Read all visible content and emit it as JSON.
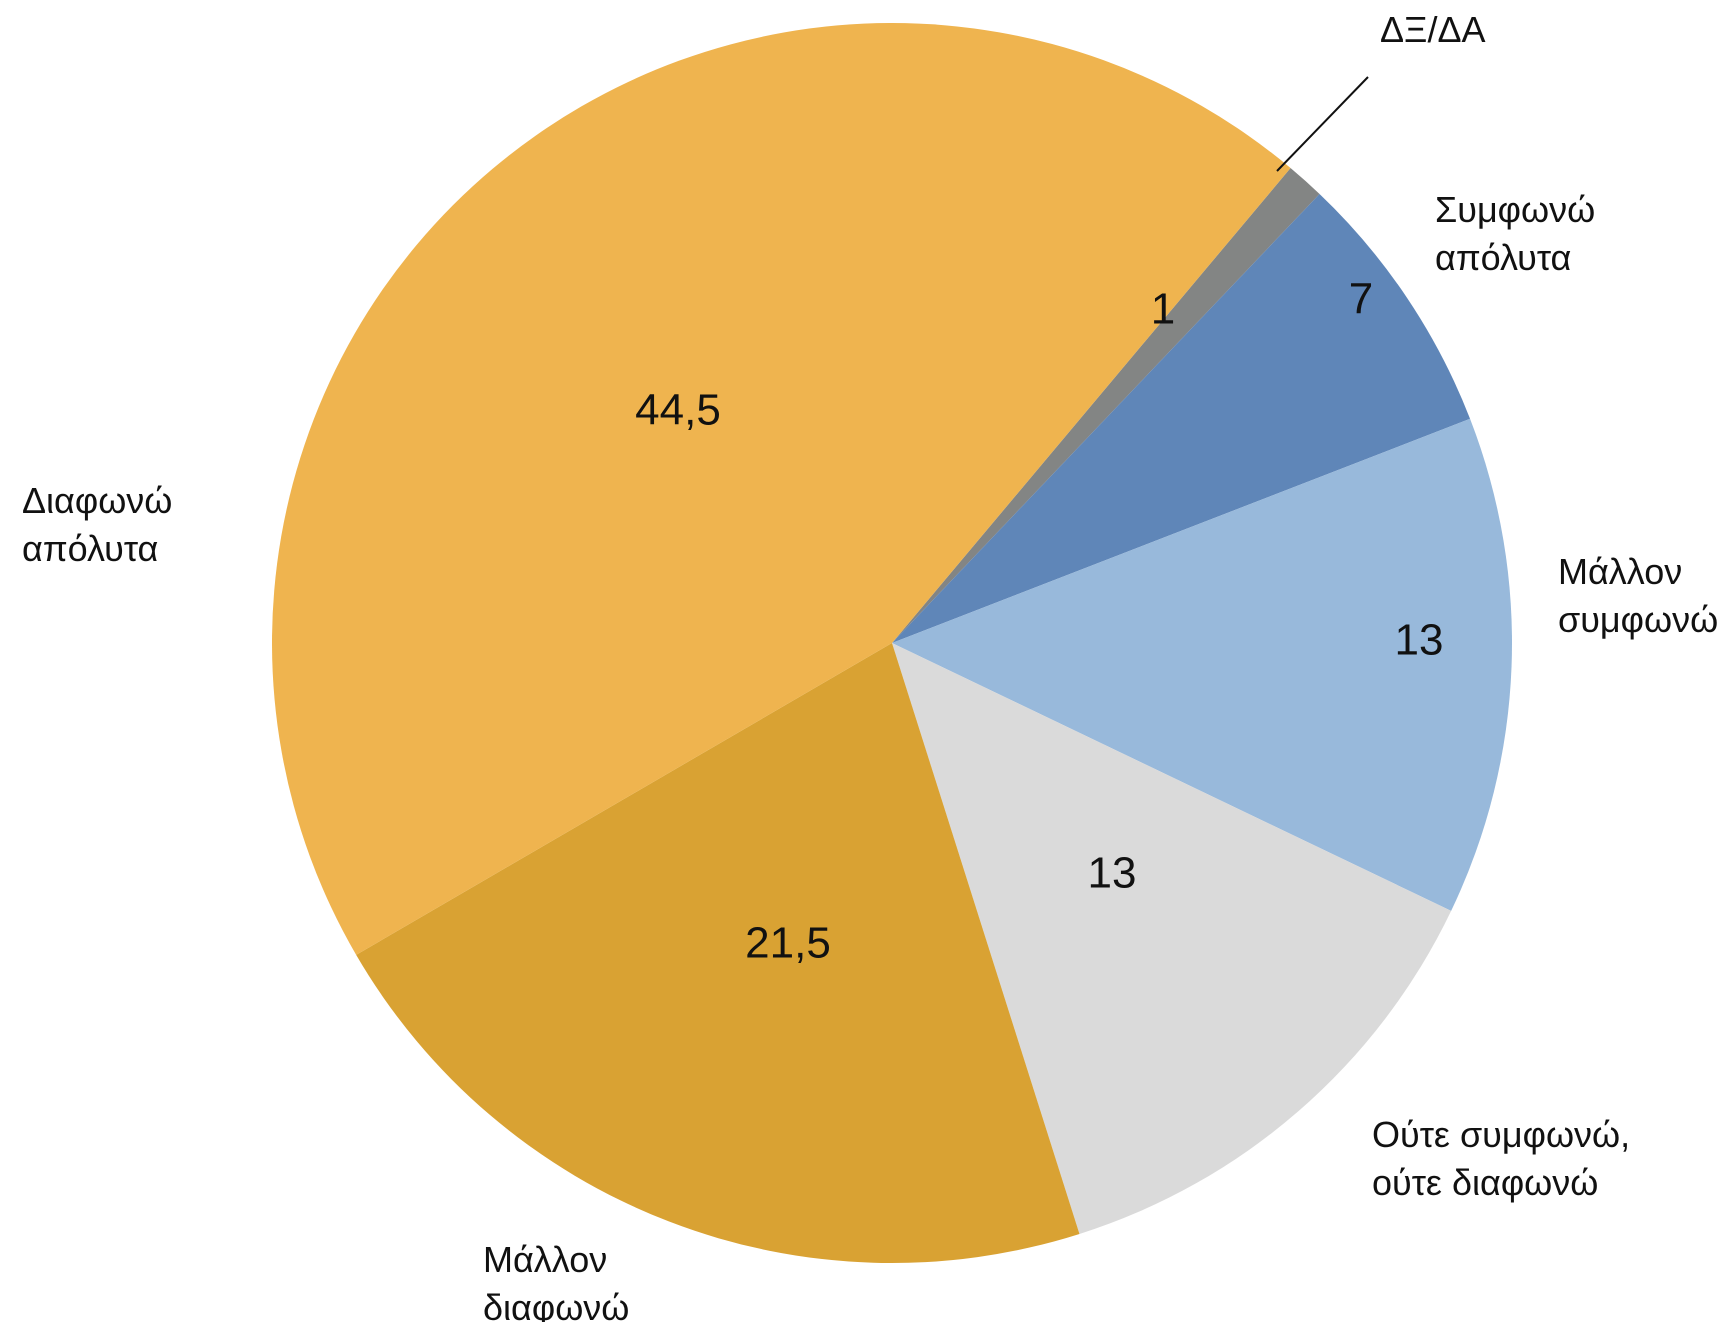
{
  "chart_data": {
    "type": "pie",
    "title": "",
    "start_angle_deg": 40,
    "direction": "clockwise",
    "slices": [
      {
        "label": "ΔΞ/ΔΑ",
        "value": 1,
        "display": "1",
        "color": "#838584"
      },
      {
        "label": "Συμφωνώ απόλυτα",
        "lines": [
          "Συμφωνώ",
          "απόλυτα"
        ],
        "value": 7,
        "display": "7",
        "color": "#5F86B8"
      },
      {
        "label": "Μάλλον συμφωνώ",
        "lines": [
          "Μάλλον",
          "συμφωνώ"
        ],
        "value": 13,
        "display": "13",
        "color": "#98B9DB"
      },
      {
        "label": "Ούτε συμφωνώ, ούτε διαφωνώ",
        "lines": [
          "Ούτε συμφωνώ,",
          "ούτε διαφωνώ"
        ],
        "value": 13,
        "display": "13",
        "color": "#DADADA"
      },
      {
        "label": "Μάλλον διαφωνώ",
        "lines": [
          "Μάλλον",
          "διαφωνώ"
        ],
        "value": 21.5,
        "display": "21,5",
        "color": "#D9A233"
      },
      {
        "label": "Διαφωνώ απόλυτα",
        "lines": [
          "Διαφωνώ",
          "απόλυτα"
        ],
        "value": 44.5,
        "display": "44,5",
        "color": "#EFB44F"
      }
    ]
  }
}
